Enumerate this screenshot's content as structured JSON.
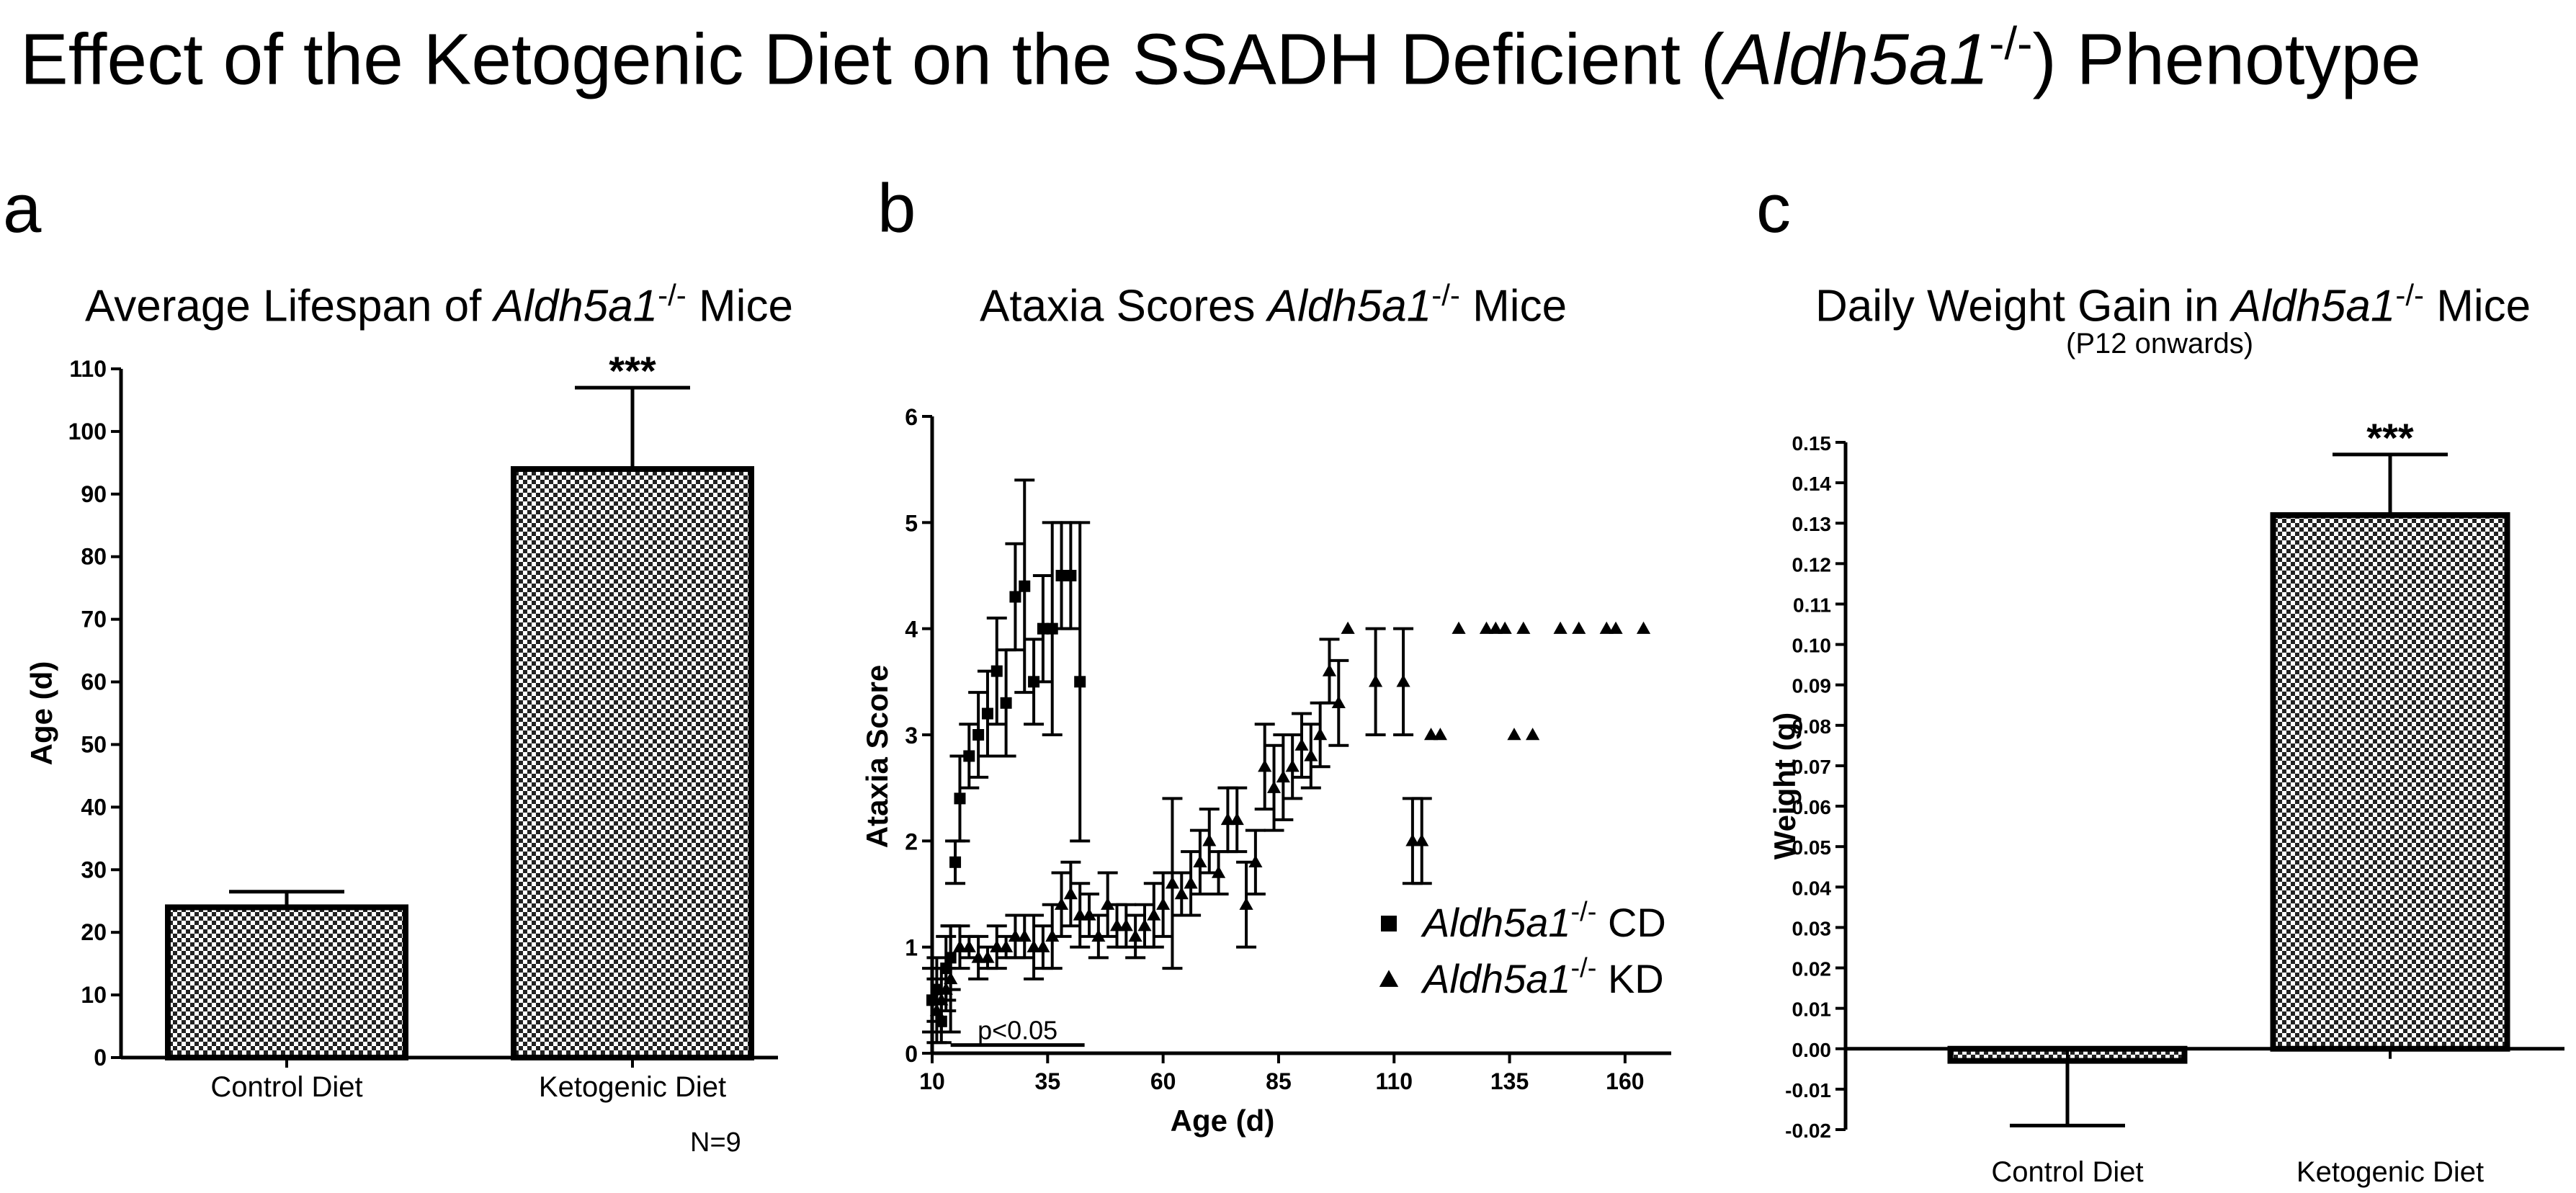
{
  "title": {
    "prefix": "Effect of the Ketogenic Diet on the SSADH Deficient (",
    "gene": "Aldh5a1",
    "sup": "-/-",
    "suffix": ") Phenotype"
  },
  "footnote": "N=9",
  "colors": {
    "ink": "#000000",
    "background": "#ffffff",
    "hatch_dark": "#222222",
    "hatch_light": "#ffffff"
  },
  "panels": {
    "a": {
      "letter": "a",
      "title_pre": "Average Lifespan of ",
      "title_gene": "Aldh5a1",
      "title_sup": "-/-",
      "title_post": " Mice"
    },
    "b": {
      "letter": "b",
      "title_pre": "Ataxia Scores ",
      "title_gene": "Aldh5a1",
      "title_sup": "-/-",
      "title_post": " Mice"
    },
    "c": {
      "letter": "c",
      "title_pre": "Daily Weight Gain in ",
      "title_gene": "Aldh5a1",
      "title_sup": "-/-",
      "title_post": " Mice",
      "subtitle": "(P12 onwards)"
    }
  },
  "chart_data": [
    {
      "id": "a",
      "type": "bar",
      "title": "Average Lifespan of Aldh5a1-/- Mice",
      "xlabel": "",
      "ylabel": "Age (d)",
      "ylim": [
        0,
        110
      ],
      "yticks": [
        0,
        10,
        20,
        30,
        40,
        50,
        60,
        70,
        80,
        90,
        100,
        110
      ],
      "categories": [
        "Control Diet",
        "Ketogenic Diet"
      ],
      "values": [
        24,
        94
      ],
      "errors": [
        2.5,
        13
      ],
      "annotations": [
        "",
        "***"
      ],
      "n_label": "N=9"
    },
    {
      "id": "b",
      "type": "scatter",
      "title": "Ataxia Scores Aldh5a1-/- Mice",
      "xlabel": "Age (d)",
      "ylabel": "Ataxia Score",
      "xlim": [
        10,
        170
      ],
      "ylim": [
        0,
        6
      ],
      "xticks": [
        10,
        35,
        60,
        85,
        110,
        135,
        160
      ],
      "yticks": [
        0,
        1,
        2,
        3,
        4,
        5,
        6
      ],
      "significance": {
        "label": "p<0.05",
        "x_from": 14,
        "x_to": 43,
        "y": 0.05
      },
      "legend": [
        {
          "gene": "Aldh5a1",
          "sup": "-/-",
          "diet": " CD",
          "marker": "square"
        },
        {
          "gene": "Aldh5a1",
          "sup": "-/-",
          "diet": " KD",
          "marker": "triangle"
        }
      ],
      "series": [
        {
          "name": "Aldh5a1-/- CD",
          "marker": "square",
          "points": [
            [
              10,
              0.5,
              0.3
            ],
            [
              11,
              0.6,
              0.3
            ],
            [
              12,
              0.3,
              0.2
            ],
            [
              13,
              0.8,
              0.3
            ],
            [
              14,
              0.9,
              0.3
            ],
            [
              15,
              1.8,
              0.2
            ],
            [
              16,
              2.4,
              0.4
            ],
            [
              18,
              2.8,
              0.3
            ],
            [
              20,
              3.0,
              0.4
            ],
            [
              22,
              3.2,
              0.4
            ],
            [
              24,
              3.6,
              0.5
            ],
            [
              26,
              3.3,
              0.5
            ],
            [
              28,
              4.3,
              0.5
            ],
            [
              30,
              4.4,
              1.0
            ],
            [
              32,
              3.5,
              0.4
            ],
            [
              34,
              4.0,
              0.5
            ],
            [
              36,
              4.0,
              1.0
            ],
            [
              38,
              4.5,
              0.5
            ],
            [
              40,
              4.5,
              0.5
            ],
            [
              42,
              3.5,
              1.5
            ]
          ]
        },
        {
          "name": "Aldh5a1-/- KD",
          "marker": "triangle",
          "points": [
            [
              11,
              0.4,
              0.3
            ],
            [
              12,
              0.5,
              0.3
            ],
            [
              13,
              0.6,
              0.2
            ],
            [
              14,
              0.7,
              0.5
            ],
            [
              16,
              1.0,
              0.2
            ],
            [
              18,
              1.0,
              0.1
            ],
            [
              20,
              0.9,
              0.2
            ],
            [
              22,
              0.9,
              0.1
            ],
            [
              24,
              1.0,
              0.2
            ],
            [
              26,
              1.0,
              0.1
            ],
            [
              28,
              1.1,
              0.2
            ],
            [
              30,
              1.1,
              0.2
            ],
            [
              32,
              1.0,
              0.3
            ],
            [
              34,
              1.0,
              0.2
            ],
            [
              36,
              1.1,
              0.3
            ],
            [
              38,
              1.4,
              0.3
            ],
            [
              40,
              1.5,
              0.3
            ],
            [
              42,
              1.3,
              0.3
            ],
            [
              44,
              1.3,
              0.2
            ],
            [
              46,
              1.1,
              0.2
            ],
            [
              48,
              1.4,
              0.3
            ],
            [
              50,
              1.2,
              0.2
            ],
            [
              52,
              1.2,
              0.2
            ],
            [
              54,
              1.1,
              0.2
            ],
            [
              56,
              1.2,
              0.2
            ],
            [
              58,
              1.3,
              0.3
            ],
            [
              60,
              1.4,
              0.3
            ],
            [
              62,
              1.6,
              0.8
            ],
            [
              64,
              1.5,
              0.2
            ],
            [
              66,
              1.6,
              0.3
            ],
            [
              68,
              1.8,
              0.3
            ],
            [
              70,
              2.0,
              0.3
            ],
            [
              72,
              1.7,
              0.2
            ],
            [
              74,
              2.2,
              0.3
            ],
            [
              76,
              2.2,
              0.3
            ],
            [
              78,
              1.4,
              0.4
            ],
            [
              80,
              1.8,
              0.3
            ],
            [
              82,
              2.7,
              0.4
            ],
            [
              84,
              2.5,
              0.4
            ],
            [
              86,
              2.6,
              0.4
            ],
            [
              88,
              2.7,
              0.3
            ],
            [
              90,
              2.9,
              0.3
            ],
            [
              92,
              2.8,
              0.3
            ],
            [
              94,
              3.0,
              0.3
            ],
            [
              96,
              3.6,
              0.3
            ],
            [
              98,
              3.3,
              0.4
            ],
            [
              100,
              4.0,
              0.0
            ],
            [
              106,
              3.5,
              0.5
            ],
            [
              112,
              3.5,
              0.5
            ],
            [
              114,
              2.0,
              0.4
            ],
            [
              116,
              2.0,
              0.4
            ],
            [
              118,
              3.0,
              0.0
            ],
            [
              120,
              3.0,
              0.0
            ],
            [
              124,
              4.0,
              0.0
            ],
            [
              130,
              4.0,
              0.0
            ],
            [
              132,
              4.0,
              0.0
            ],
            [
              134,
              4.0,
              0.0
            ],
            [
              136,
              3.0,
              0.0
            ],
            [
              138,
              4.0,
              0.0
            ],
            [
              140,
              3.0,
              0.0
            ],
            [
              146,
              4.0,
              0.0
            ],
            [
              150,
              4.0,
              0.0
            ],
            [
              156,
              4.0,
              0.0
            ],
            [
              158,
              4.0,
              0.0
            ],
            [
              164,
              4.0,
              0.0
            ]
          ]
        }
      ]
    },
    {
      "id": "c",
      "type": "bar",
      "title": "Daily Weight Gain in Aldh5a1-/- Mice",
      "subtitle": "(P12 onwards)",
      "xlabel": "",
      "ylabel": "Weight  (g)",
      "ylim": [
        -0.02,
        0.15
      ],
      "yticks": [
        "-0.02",
        "-0.01",
        "0.00",
        "0.01",
        "0.02",
        "0.03",
        "0.04",
        "0.05",
        "0.06",
        "0.07",
        "0.08",
        "0.09",
        "0.10",
        "0.11",
        "0.12",
        "0.13",
        "0.14",
        "0.15"
      ],
      "categories": [
        "Control Diet",
        "Ketogenic Diet"
      ],
      "values": [
        -0.003,
        0.132
      ],
      "errors": [
        0.016,
        0.015
      ],
      "annotations": [
        "",
        "***"
      ]
    }
  ]
}
